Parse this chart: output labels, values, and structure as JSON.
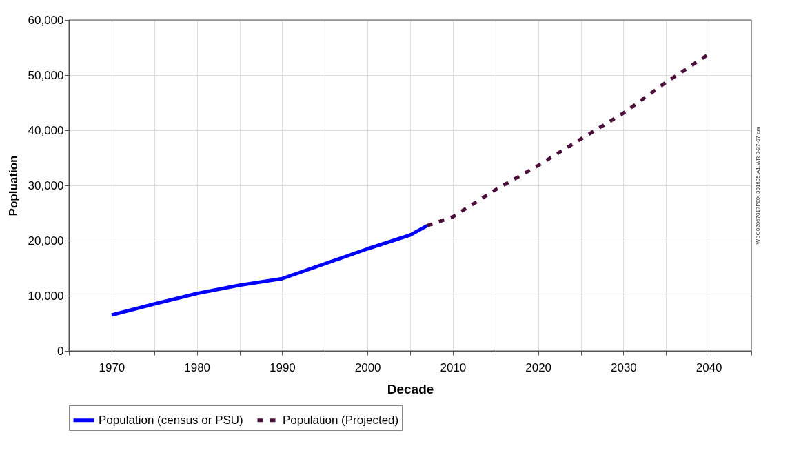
{
  "chart_data": {
    "type": "line",
    "xlabel": "Decade",
    "ylabel": "Popluation",
    "xlim": [
      1965,
      2045
    ],
    "ylim": [
      0,
      60000
    ],
    "xticks": [
      {
        "value": 1965,
        "label": null
      },
      1970,
      {
        "value": 1975,
        "label": null
      },
      1980,
      {
        "value": 1985,
        "label": null
      },
      1990,
      {
        "value": 1995,
        "label": null
      },
      2000,
      {
        "value": 2005,
        "label": null
      },
      2010,
      {
        "value": 2015,
        "label": null
      },
      2020,
      {
        "value": 2025,
        "label": null
      },
      2030,
      {
        "value": 2035,
        "label": null
      },
      2040,
      {
        "value": 2045,
        "label": null
      }
    ],
    "yticks": [
      0,
      {
        "value": 10000,
        "label": "10,000"
      },
      {
        "value": 20000,
        "label": "20,000"
      },
      {
        "value": 30000,
        "label": "30,000"
      },
      {
        "value": 40000,
        "label": "40,000"
      },
      {
        "value": 50000,
        "label": "50,000"
      },
      {
        "value": 60000,
        "label": "60,000"
      }
    ],
    "grid": true,
    "legend": "bottom",
    "series": [
      {
        "name": "Population (census or PSU)",
        "color": "#0000ff",
        "line_style": "solid",
        "x": [
          1970,
          1975,
          1980,
          1985,
          1990,
          1995,
          2000,
          2005,
          2007
        ],
        "values": [
          6500,
          8500,
          10400,
          11900,
          13100,
          15800,
          18500,
          21000,
          22700
        ]
      },
      {
        "name": "Population (Projected)",
        "color": "#4b0f3c",
        "line_style": "dashed",
        "x": [
          2007,
          2010,
          2015,
          2020,
          2025,
          2030,
          2035,
          2040
        ],
        "values": [
          22700,
          24300,
          29200,
          33600,
          38400,
          43100,
          48700,
          53800
        ]
      }
    ],
    "annotations": [
      "WBG02067017PDX 331635.A1.WR 3-27-07 am"
    ]
  }
}
